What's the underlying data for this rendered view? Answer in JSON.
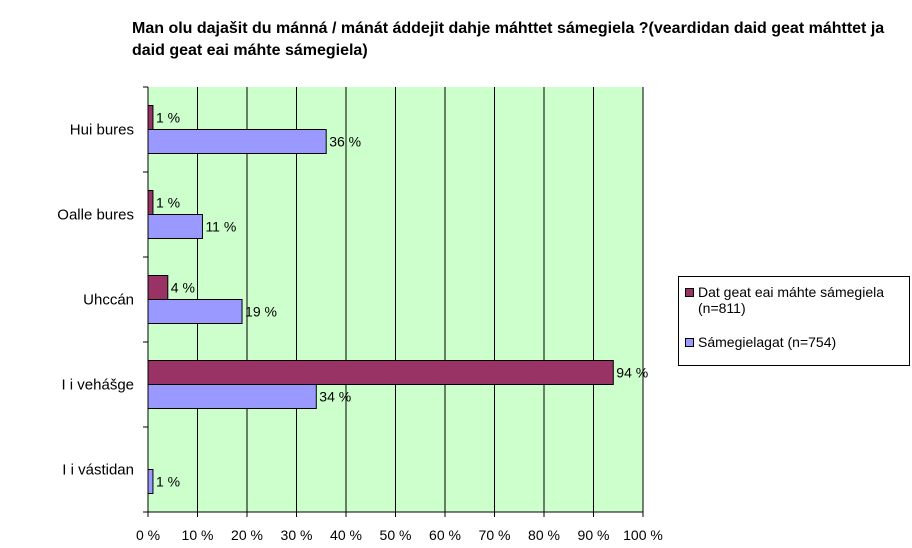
{
  "chart_data": {
    "type": "bar",
    "orientation": "horizontal",
    "title": "Man olu dajašit du mánná / mánát áddejit dahje máhttet sámegiela ?(veardidan daid geat máhttet ja daid geat eai máhte sámegiela)",
    "categories": [
      "Hui bures",
      "Oalle bures",
      "Uhccán",
      "I i vehášge",
      "I i vástidan"
    ],
    "series": [
      {
        "name": "Dat geat eai máhte sámegiela (n=811)",
        "color": "#993366",
        "values": [
          1,
          1,
          4,
          94,
          null
        ],
        "labels": [
          "1 %",
          "1 %",
          "4 %",
          "94 %",
          ""
        ]
      },
      {
        "name": "Sámegielagat (n=754)",
        "color": "#9999ff",
        "values": [
          36,
          11,
          19,
          34,
          1
        ],
        "labels": [
          "36 %",
          "11 %",
          "19 %",
          "34 %",
          "1 %"
        ]
      }
    ],
    "xlim": [
      0,
      100
    ],
    "xticks": [
      "0 %",
      "10 %",
      "20 %",
      "30 %",
      "40 %",
      "50 %",
      "60 %",
      "70 %",
      "80 %",
      "90 %",
      "100 %"
    ],
    "plot_background": "#ccffcc",
    "grid": true,
    "legend_position": "right"
  }
}
